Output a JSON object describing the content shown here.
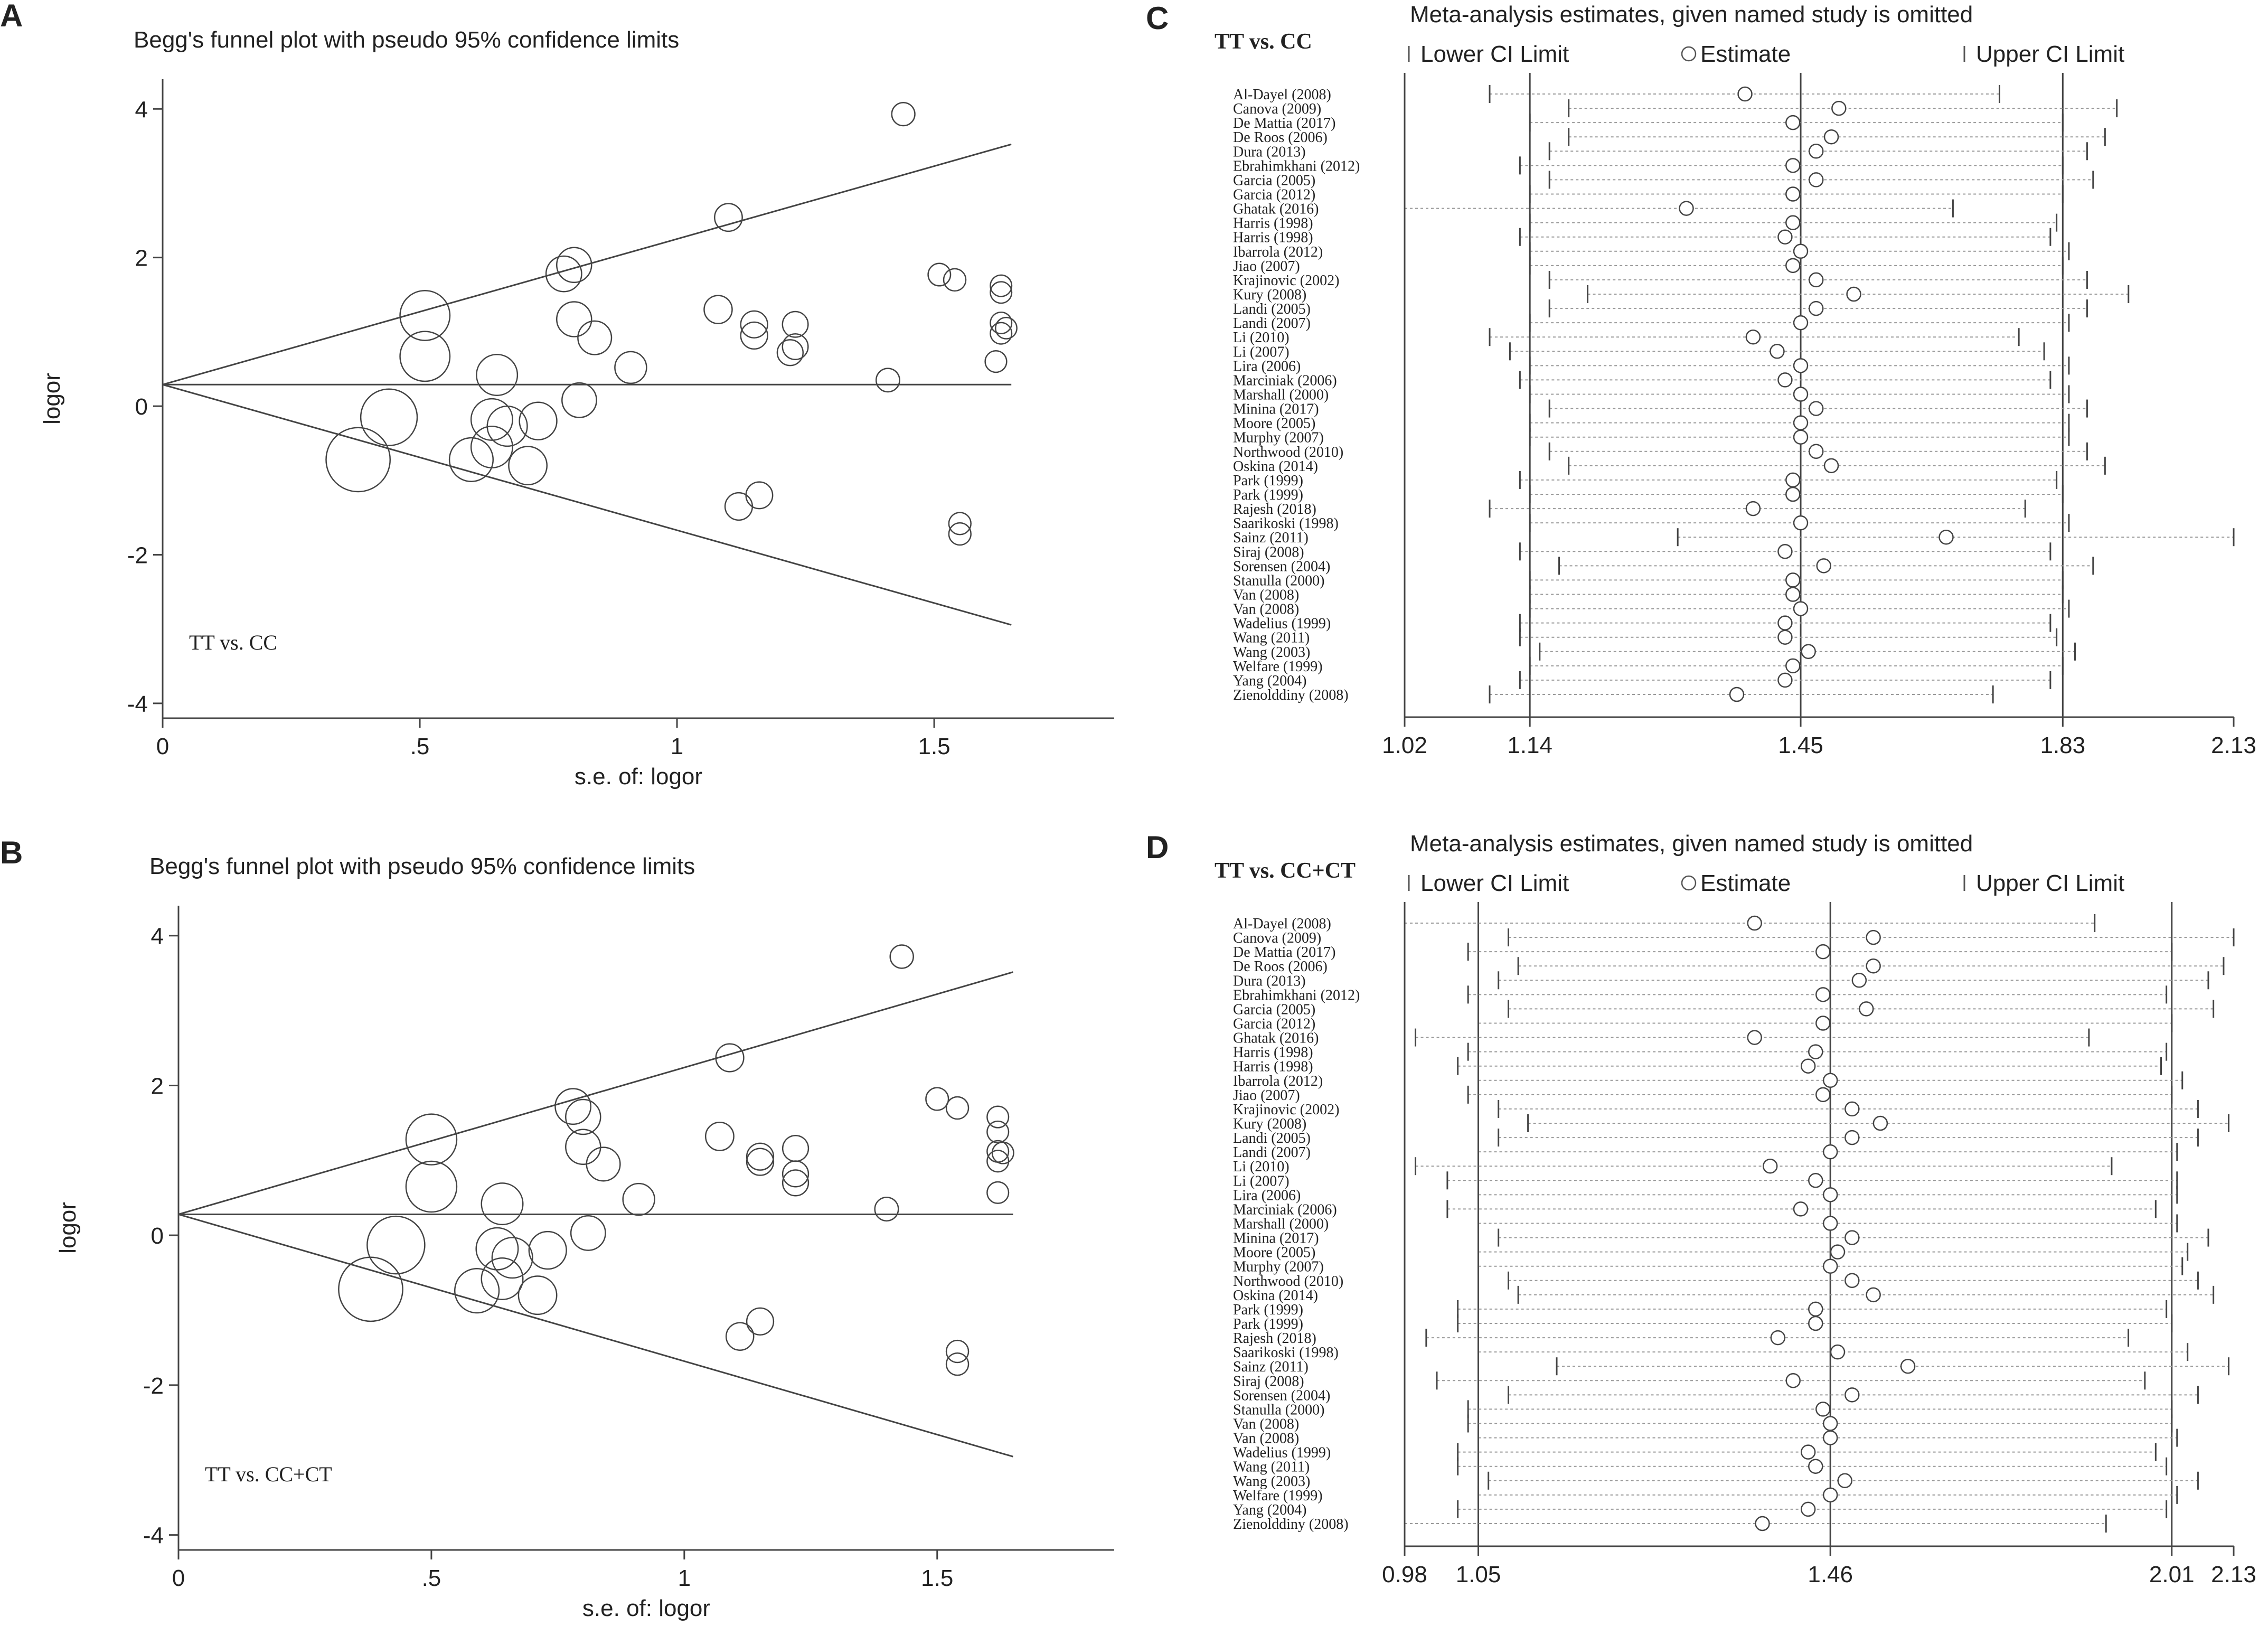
{
  "panel_letters": [
    "A",
    "B",
    "C",
    "D"
  ],
  "chart_data": [
    {
      "type": "scatter",
      "panel": "A",
      "title": "Begg's funnel plot with pseudo 95% confidence limits",
      "xlabel": "s.e. of: logor",
      "ylabel": "logor",
      "annotation": "TT vs. CC",
      "xlim": [
        0,
        1.85
      ],
      "ylim": [
        -4.2,
        4.4
      ],
      "xticks": [
        0,
        0.5,
        1,
        1.5
      ],
      "xtick_labels": [
        "0",
        ".5",
        "1",
        "1.5"
      ],
      "yticks": [
        -4,
        -2,
        0,
        2,
        4
      ],
      "ytick_labels": [
        "-4",
        "-2",
        "0",
        "2",
        "4"
      ],
      "pooled_logor": 0.29,
      "max_se": 1.65,
      "points": [
        {
          "se": 0.38,
          "logor": -0.72
        },
        {
          "se": 0.44,
          "logor": -0.15
        },
        {
          "se": 0.51,
          "logor": 1.22
        },
        {
          "se": 0.51,
          "logor": 0.67
        },
        {
          "se": 0.6,
          "logor": -0.72
        },
        {
          "se": 0.64,
          "logor": -0.18
        },
        {
          "se": 0.64,
          "logor": -0.55
        },
        {
          "se": 0.65,
          "logor": 0.42
        },
        {
          "se": 0.67,
          "logor": -0.27
        },
        {
          "se": 0.71,
          "logor": -0.8
        },
        {
          "se": 0.73,
          "logor": -0.2
        },
        {
          "se": 0.78,
          "logor": 1.78
        },
        {
          "se": 0.8,
          "logor": 1.9
        },
        {
          "se": 0.8,
          "logor": 1.17
        },
        {
          "se": 0.81,
          "logor": 0.08
        },
        {
          "se": 0.84,
          "logor": 0.92
        },
        {
          "se": 0.91,
          "logor": 0.52
        },
        {
          "se": 1.08,
          "logor": 1.3
        },
        {
          "se": 1.1,
          "logor": 2.54
        },
        {
          "se": 1.12,
          "logor": -1.35
        },
        {
          "se": 1.15,
          "logor": 1.1
        },
        {
          "se": 1.15,
          "logor": 0.95
        },
        {
          "se": 1.16,
          "logor": -1.2
        },
        {
          "se": 1.22,
          "logor": 0.72
        },
        {
          "se": 1.23,
          "logor": 1.1
        },
        {
          "se": 1.23,
          "logor": 0.8
        },
        {
          "se": 1.41,
          "logor": 0.35
        },
        {
          "se": 1.44,
          "logor": 3.93
        },
        {
          "se": 1.51,
          "logor": 1.77
        },
        {
          "se": 1.54,
          "logor": 1.7
        },
        {
          "se": 1.55,
          "logor": -1.58
        },
        {
          "se": 1.55,
          "logor": -1.72
        },
        {
          "se": 1.63,
          "logor": 1.62
        },
        {
          "se": 1.63,
          "logor": 1.53
        },
        {
          "se": 1.63,
          "logor": 1.12
        },
        {
          "se": 1.64,
          "logor": 1.05
        },
        {
          "se": 1.63,
          "logor": 0.98
        },
        {
          "se": 1.62,
          "logor": 0.6
        }
      ]
    },
    {
      "type": "scatter",
      "panel": "B",
      "title": "Begg's funnel plot with pseudo 95% confidence limits",
      "xlabel": "s.e. of: logor",
      "ylabel": "logor",
      "annotation": "TT vs. CC+CT",
      "xlim": [
        0,
        1.85
      ],
      "ylim": [
        -4.2,
        4.4
      ],
      "xticks": [
        0,
        0.5,
        1,
        1.5
      ],
      "xtick_labels": [
        "0",
        ".5",
        "1",
        "1.5"
      ],
      "yticks": [
        -4,
        -2,
        0,
        2,
        4
      ],
      "ytick_labels": [
        "-4",
        "-2",
        "0",
        "2",
        "4"
      ],
      "pooled_logor": 0.28,
      "max_se": 1.65,
      "points": [
        {
          "se": 0.38,
          "logor": -0.72
        },
        {
          "se": 0.43,
          "logor": -0.13
        },
        {
          "se": 0.5,
          "logor": 1.28
        },
        {
          "se": 0.5,
          "logor": 0.65
        },
        {
          "se": 0.59,
          "logor": -0.74
        },
        {
          "se": 0.63,
          "logor": -0.18
        },
        {
          "se": 0.64,
          "logor": -0.58
        },
        {
          "se": 0.64,
          "logor": 0.42
        },
        {
          "se": 0.66,
          "logor": -0.3
        },
        {
          "se": 0.71,
          "logor": -0.8
        },
        {
          "se": 0.73,
          "logor": -0.2
        },
        {
          "se": 0.78,
          "logor": 1.72
        },
        {
          "se": 0.8,
          "logor": 1.58
        },
        {
          "se": 0.8,
          "logor": 1.18
        },
        {
          "se": 0.81,
          "logor": 0.03
        },
        {
          "se": 0.84,
          "logor": 0.95
        },
        {
          "se": 0.91,
          "logor": 0.48
        },
        {
          "se": 1.07,
          "logor": 1.32
        },
        {
          "se": 1.09,
          "logor": 2.37
        },
        {
          "se": 1.11,
          "logor": -1.35
        },
        {
          "se": 1.15,
          "logor": 1.05
        },
        {
          "se": 1.15,
          "logor": 0.98
        },
        {
          "se": 1.15,
          "logor": -1.15
        },
        {
          "se": 1.22,
          "logor": 0.7
        },
        {
          "se": 1.22,
          "logor": 1.16
        },
        {
          "se": 1.22,
          "logor": 0.82
        },
        {
          "se": 1.4,
          "logor": 0.35
        },
        {
          "se": 1.43,
          "logor": 3.72
        },
        {
          "se": 1.5,
          "logor": 1.82
        },
        {
          "se": 1.54,
          "logor": 1.7
        },
        {
          "se": 1.54,
          "logor": -1.55
        },
        {
          "se": 1.54,
          "logor": -1.72
        },
        {
          "se": 1.62,
          "logor": 1.58
        },
        {
          "se": 1.62,
          "logor": 1.38
        },
        {
          "se": 1.62,
          "logor": 1.12
        },
        {
          "se": 1.63,
          "logor": 1.1
        },
        {
          "se": 1.62,
          "logor": 0.99
        },
        {
          "se": 1.62,
          "logor": 0.57
        }
      ]
    },
    {
      "type": "forest",
      "panel": "C",
      "comparison": "TT vs. CC",
      "title": "Meta-analysis estimates, given named study is omitted",
      "legend": [
        "Lower CI Limit",
        "Estimate",
        "Upper CI Limit"
      ],
      "scale": "log",
      "axis_min": 1.02,
      "axis_max": 2.13,
      "reference_lines": [
        1.14,
        1.45,
        1.83
      ],
      "tick_values": [
        1.02,
        1.14,
        1.45,
        1.83,
        2.13
      ],
      "tick_labels": [
        "1.02",
        "1.14",
        "1.45",
        "1.83",
        "2.13"
      ],
      "studies": [
        {
          "name": "Al-Dayel (2008)",
          "lower": 1.1,
          "est": 1.38,
          "upper": 1.73
        },
        {
          "name": "Canova (2009)",
          "lower": 1.18,
          "est": 1.5,
          "upper": 1.92
        },
        {
          "name": "De Mattia (2017)",
          "lower": 1.14,
          "est": 1.44,
          "upper": 1.83
        },
        {
          "name": "De Roos (2006)",
          "lower": 1.18,
          "est": 1.49,
          "upper": 1.9
        },
        {
          "name": "Dura (2013)",
          "lower": 1.16,
          "est": 1.47,
          "upper": 1.87
        },
        {
          "name": "Ebrahimkhani (2012)",
          "lower": 1.13,
          "est": 1.44,
          "upper": 1.83
        },
        {
          "name": "Garcia (2005)",
          "lower": 1.16,
          "est": 1.47,
          "upper": 1.88
        },
        {
          "name": "Garcia (2012)",
          "lower": 1.14,
          "est": 1.44,
          "upper": 1.83
        },
        {
          "name": "Ghatak (2016)",
          "lower": 1.02,
          "est": 1.31,
          "upper": 1.66
        },
        {
          "name": "Harris (1998)",
          "lower": 1.14,
          "est": 1.44,
          "upper": 1.82
        },
        {
          "name": "Harris (1998)",
          "lower": 1.13,
          "est": 1.43,
          "upper": 1.81
        },
        {
          "name": "Ibarrola (2012)",
          "lower": 1.14,
          "est": 1.45,
          "upper": 1.84
        },
        {
          "name": "Jiao (2007)",
          "lower": 1.14,
          "est": 1.44,
          "upper": 1.83
        },
        {
          "name": "Krajinovic (2002)",
          "lower": 1.16,
          "est": 1.47,
          "upper": 1.87
        },
        {
          "name": "Kury (2008)",
          "lower": 1.2,
          "est": 1.52,
          "upper": 1.94
        },
        {
          "name": "Landi (2005)",
          "lower": 1.16,
          "est": 1.47,
          "upper": 1.87
        },
        {
          "name": "Landi (2007)",
          "lower": 1.14,
          "est": 1.45,
          "upper": 1.84
        },
        {
          "name": "Li (2010)",
          "lower": 1.1,
          "est": 1.39,
          "upper": 1.76
        },
        {
          "name": "Li (2007)",
          "lower": 1.12,
          "est": 1.42,
          "upper": 1.8
        },
        {
          "name": "Lira (2006)",
          "lower": 1.14,
          "est": 1.45,
          "upper": 1.84
        },
        {
          "name": "Marciniak (2006)",
          "lower": 1.13,
          "est": 1.43,
          "upper": 1.81
        },
        {
          "name": "Marshall (2000)",
          "lower": 1.14,
          "est": 1.45,
          "upper": 1.84
        },
        {
          "name": "Minina (2017)",
          "lower": 1.16,
          "est": 1.47,
          "upper": 1.87
        },
        {
          "name": "Moore (2005)",
          "lower": 1.14,
          "est": 1.45,
          "upper": 1.84
        },
        {
          "name": "Murphy (2007)",
          "lower": 1.14,
          "est": 1.45,
          "upper": 1.84
        },
        {
          "name": "Northwood (2010)",
          "lower": 1.16,
          "est": 1.47,
          "upper": 1.87
        },
        {
          "name": "Oskina (2014)",
          "lower": 1.18,
          "est": 1.49,
          "upper": 1.9
        },
        {
          "name": "Park (1999)",
          "lower": 1.13,
          "est": 1.44,
          "upper": 1.82
        },
        {
          "name": "Park (1999)",
          "lower": 1.14,
          "est": 1.44,
          "upper": 1.83
        },
        {
          "name": "Rajesh (2018)",
          "lower": 1.1,
          "est": 1.39,
          "upper": 1.77
        },
        {
          "name": "Saarikoski (1998)",
          "lower": 1.14,
          "est": 1.45,
          "upper": 1.84
        },
        {
          "name": "Sainz (2011)",
          "lower": 1.3,
          "est": 1.65,
          "upper": 2.13
        },
        {
          "name": "Siraj (2008)",
          "lower": 1.13,
          "est": 1.43,
          "upper": 1.81
        },
        {
          "name": "Sorensen (2004)",
          "lower": 1.17,
          "est": 1.48,
          "upper": 1.88
        },
        {
          "name": "Stanulla (2000)",
          "lower": 1.14,
          "est": 1.44,
          "upper": 1.83
        },
        {
          "name": "Van (2008)",
          "lower": 1.14,
          "est": 1.44,
          "upper": 1.83
        },
        {
          "name": "Van (2008)",
          "lower": 1.14,
          "est": 1.45,
          "upper": 1.84
        },
        {
          "name": "Wadelius (1999)",
          "lower": 1.13,
          "est": 1.43,
          "upper": 1.81
        },
        {
          "name": "Wang (2011)",
          "lower": 1.13,
          "est": 1.43,
          "upper": 1.82
        },
        {
          "name": "Wang (2003)",
          "lower": 1.15,
          "est": 1.46,
          "upper": 1.85
        },
        {
          "name": "Welfare (1999)",
          "lower": 1.14,
          "est": 1.44,
          "upper": 1.83
        },
        {
          "name": "Yang (2004)",
          "lower": 1.13,
          "est": 1.43,
          "upper": 1.81
        },
        {
          "name": "Zienolddiny (2008)",
          "lower": 1.1,
          "est": 1.37,
          "upper": 1.72
        }
      ]
    },
    {
      "type": "forest",
      "panel": "D",
      "comparison": "TT vs. CC+CT",
      "title": "Meta-analysis estimates, given named study is omitted",
      "legend": [
        "Lower CI Limit",
        "Estimate",
        "Upper CI Limit"
      ],
      "scale": "log",
      "axis_min": 0.98,
      "axis_max": 2.13,
      "reference_lines": [
        1.05,
        1.46,
        2.01
      ],
      "tick_values": [
        0.98,
        1.05,
        1.46,
        2.01,
        2.13
      ],
      "tick_labels": [
        "0.98",
        "1.05",
        "1.46",
        "2.01",
        "2.13"
      ],
      "studies": [
        {
          "name": "Al-Dayel (2008)",
          "lower": 0.98,
          "est": 1.36,
          "upper": 1.87
        },
        {
          "name": "Canova (2009)",
          "lower": 1.08,
          "est": 1.52,
          "upper": 2.13
        },
        {
          "name": "De Mattia (2017)",
          "lower": 1.04,
          "est": 1.45,
          "upper": 2.01
        },
        {
          "name": "De Roos (2006)",
          "lower": 1.09,
          "est": 1.52,
          "upper": 2.11
        },
        {
          "name": "Dura (2013)",
          "lower": 1.07,
          "est": 1.5,
          "upper": 2.08
        },
        {
          "name": "Ebrahimkhani (2012)",
          "lower": 1.04,
          "est": 1.45,
          "upper": 2.0
        },
        {
          "name": "Garcia (2005)",
          "lower": 1.08,
          "est": 1.51,
          "upper": 2.09
        },
        {
          "name": "Garcia (2012)",
          "lower": 1.05,
          "est": 1.45,
          "upper": 2.01
        },
        {
          "name": "Ghatak (2016)",
          "lower": 0.99,
          "est": 1.36,
          "upper": 1.86
        },
        {
          "name": "Harris (1998)",
          "lower": 1.04,
          "est": 1.44,
          "upper": 2.0
        },
        {
          "name": "Harris (1998)",
          "lower": 1.03,
          "est": 1.43,
          "upper": 1.99
        },
        {
          "name": "Ibarrola (2012)",
          "lower": 1.05,
          "est": 1.46,
          "upper": 2.03
        },
        {
          "name": "Jiao (2007)",
          "lower": 1.04,
          "est": 1.45,
          "upper": 2.01
        },
        {
          "name": "Krajinovic (2002)",
          "lower": 1.07,
          "est": 1.49,
          "upper": 2.06
        },
        {
          "name": "Kury (2008)",
          "lower": 1.1,
          "est": 1.53,
          "upper": 2.12
        },
        {
          "name": "Landi (2005)",
          "lower": 1.07,
          "est": 1.49,
          "upper": 2.06
        },
        {
          "name": "Landi (2007)",
          "lower": 1.05,
          "est": 1.46,
          "upper": 2.02
        },
        {
          "name": "Li (2010)",
          "lower": 0.99,
          "est": 1.38,
          "upper": 1.9
        },
        {
          "name": "Li (2007)",
          "lower": 1.02,
          "est": 1.44,
          "upper": 2.02
        },
        {
          "name": "Lira (2006)",
          "lower": 1.05,
          "est": 1.46,
          "upper": 2.02
        },
        {
          "name": "Marciniak (2006)",
          "lower": 1.02,
          "est": 1.42,
          "upper": 1.98
        },
        {
          "name": "Marshall (2000)",
          "lower": 1.05,
          "est": 1.46,
          "upper": 2.02
        },
        {
          "name": "Minina (2017)",
          "lower": 1.07,
          "est": 1.49,
          "upper": 2.08
        },
        {
          "name": "Moore (2005)",
          "lower": 1.05,
          "est": 1.47,
          "upper": 2.04
        },
        {
          "name": "Murphy (2007)",
          "lower": 1.05,
          "est": 1.46,
          "upper": 2.03
        },
        {
          "name": "Northwood (2010)",
          "lower": 1.08,
          "est": 1.49,
          "upper": 2.06
        },
        {
          "name": "Oskina (2014)",
          "lower": 1.09,
          "est": 1.52,
          "upper": 2.09
        },
        {
          "name": "Park (1999)",
          "lower": 1.03,
          "est": 1.44,
          "upper": 2.0
        },
        {
          "name": "Park (1999)",
          "lower": 1.03,
          "est": 1.44,
          "upper": 2.01
        },
        {
          "name": "Rajesh (2018)",
          "lower": 1.0,
          "est": 1.39,
          "upper": 1.93
        },
        {
          "name": "Saarikoski (1998)",
          "lower": 1.05,
          "est": 1.47,
          "upper": 2.04
        },
        {
          "name": "Sainz (2011)",
          "lower": 1.13,
          "est": 1.57,
          "upper": 2.12
        },
        {
          "name": "Siraj (2008)",
          "lower": 1.01,
          "est": 1.41,
          "upper": 1.96
        },
        {
          "name": "Sorensen (2004)",
          "lower": 1.08,
          "est": 1.49,
          "upper": 2.06
        },
        {
          "name": "Stanulla (2000)",
          "lower": 1.04,
          "est": 1.45,
          "upper": 2.01
        },
        {
          "name": "Van (2008)",
          "lower": 1.04,
          "est": 1.46,
          "upper": 2.01
        },
        {
          "name": "Van (2008)",
          "lower": 1.05,
          "est": 1.46,
          "upper": 2.02
        },
        {
          "name": "Wadelius (1999)",
          "lower": 1.03,
          "est": 1.43,
          "upper": 1.98
        },
        {
          "name": "Wang (2011)",
          "lower": 1.03,
          "est": 1.44,
          "upper": 2.0
        },
        {
          "name": "Wang (2003)",
          "lower": 1.06,
          "est": 1.48,
          "upper": 2.06
        },
        {
          "name": "Welfare (1999)",
          "lower": 1.05,
          "est": 1.46,
          "upper": 2.02
        },
        {
          "name": "Yang (2004)",
          "lower": 1.03,
          "est": 1.43,
          "upper": 2.0
        },
        {
          "name": "Zienolddiny (2008)",
          "lower": 0.98,
          "est": 1.37,
          "upper": 1.89
        }
      ]
    }
  ]
}
